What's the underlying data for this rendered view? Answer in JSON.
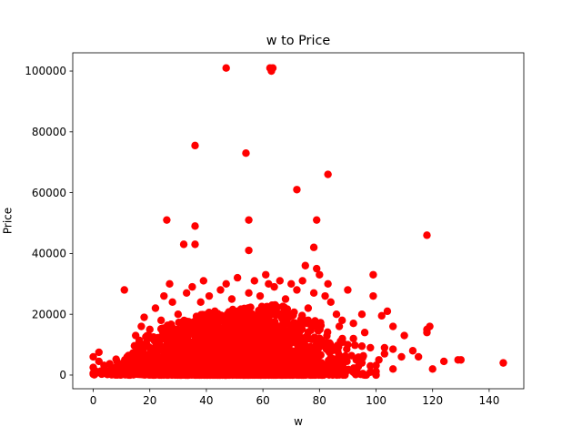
{
  "chart_data": {
    "type": "scatter",
    "title": "w to Price",
    "xlabel": "w",
    "ylabel": "Price",
    "xlim": [
      -7.25,
      152.25
    ],
    "ylim": [
      -4500,
      106000
    ],
    "x_ticks": [
      0,
      20,
      40,
      60,
      80,
      100,
      120,
      140
    ],
    "y_ticks": [
      0,
      20000,
      40000,
      60000,
      80000,
      100000
    ],
    "x_tick_labels": [
      "0",
      "20",
      "40",
      "60",
      "80",
      "100",
      "120",
      "140"
    ],
    "y_tick_labels": [
      "0",
      "20000",
      "40000",
      "60000",
      "80000",
      "100000"
    ],
    "grid": false,
    "color": "#ff0000",
    "series": [
      {
        "points": [
          [
            47,
            101000
          ],
          [
            62.5,
            101000
          ],
          [
            63.5,
            101000
          ],
          [
            63,
            100000
          ],
          [
            36,
            75500
          ],
          [
            54,
            73000
          ],
          [
            83,
            66000
          ],
          [
            72,
            61000
          ],
          [
            26,
            51000
          ],
          [
            55,
            51000
          ],
          [
            79,
            51000
          ],
          [
            36,
            49000
          ],
          [
            118,
            46000
          ],
          [
            32,
            43000
          ],
          [
            36,
            43000
          ],
          [
            78,
            42000
          ],
          [
            55,
            41000
          ],
          [
            75,
            36000
          ],
          [
            79,
            35000
          ],
          [
            99,
            33000
          ],
          [
            11,
            28000
          ],
          [
            90,
            28000
          ],
          [
            99,
            26000
          ],
          [
            104,
            21000
          ],
          [
            95,
            20000
          ],
          [
            102,
            19500
          ],
          [
            119,
            16000
          ],
          [
            106,
            16000
          ],
          [
            118,
            15000
          ],
          [
            118,
            14000
          ],
          [
            110,
            13000
          ],
          [
            96,
            14000
          ],
          [
            92,
            17000
          ],
          [
            87,
            16000
          ],
          [
            113,
            8000
          ],
          [
            115,
            6000
          ],
          [
            109,
            6000
          ],
          [
            106,
            8500
          ],
          [
            103,
            9000
          ],
          [
            103,
            7000
          ],
          [
            101,
            5000
          ],
          [
            98,
            1000
          ],
          [
            98,
            9000
          ],
          [
            93,
            5000
          ],
          [
            95,
            9500
          ],
          [
            92,
            12000
          ],
          [
            90,
            10000
          ],
          [
            124,
            4500
          ],
          [
            130,
            5000
          ],
          [
            129,
            5000
          ],
          [
            120,
            2000
          ],
          [
            145,
            4000
          ],
          [
            106,
            2000
          ],
          [
            98,
            3000
          ],
          [
            95,
            4000
          ],
          [
            0,
            600
          ],
          [
            0,
            2500
          ],
          [
            0,
            6000
          ],
          [
            1,
            1200
          ],
          [
            2,
            4500
          ],
          [
            2,
            7500
          ],
          [
            3,
            300
          ],
          [
            4,
            800
          ],
          [
            5,
            200
          ],
          [
            6,
            1500
          ],
          [
            7,
            500
          ],
          [
            8,
            2600
          ],
          [
            9,
            1000
          ],
          [
            10,
            3500
          ],
          [
            12,
            6000
          ],
          [
            14,
            5000
          ],
          [
            15,
            13000
          ],
          [
            17,
            16000
          ],
          [
            18,
            19000
          ],
          [
            20,
            15000
          ],
          [
            22,
            22000
          ],
          [
            24,
            18000
          ],
          [
            25,
            26000
          ],
          [
            27,
            30000
          ],
          [
            28,
            24000
          ],
          [
            30,
            20000
          ],
          [
            31,
            11000
          ],
          [
            33,
            27000
          ],
          [
            35,
            29000
          ],
          [
            38,
            24000
          ],
          [
            39,
            31000
          ],
          [
            41,
            26000
          ],
          [
            43,
            21000
          ],
          [
            45,
            28000
          ],
          [
            47,
            30000
          ],
          [
            49,
            25000
          ],
          [
            51,
            32000
          ],
          [
            53,
            20000
          ],
          [
            55,
            27000
          ],
          [
            57,
            31000
          ],
          [
            59,
            26000
          ],
          [
            61,
            33000
          ],
          [
            62,
            30000
          ],
          [
            64,
            29000
          ],
          [
            66,
            31000
          ],
          [
            68,
            25000
          ],
          [
            70,
            30000
          ],
          [
            72,
            28000
          ],
          [
            74,
            31000
          ],
          [
            76,
            22000
          ],
          [
            78,
            27000
          ],
          [
            80,
            33000
          ],
          [
            82,
            26000
          ],
          [
            83,
            30000
          ],
          [
            84,
            24000
          ],
          [
            86,
            20000
          ],
          [
            88,
            18000
          ]
        ]
      }
    ]
  }
}
